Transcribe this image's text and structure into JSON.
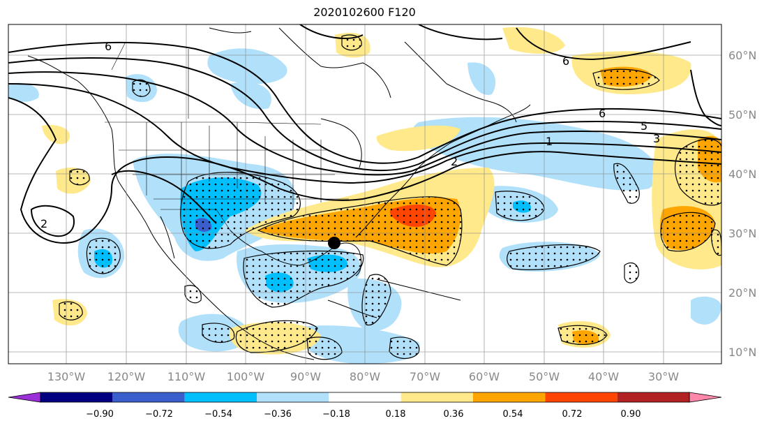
{
  "title": "2020102600 F120",
  "longitude_labels": [
    "130°W",
    "120°W",
    "110°W",
    "100°W",
    "90°W",
    "80°W",
    "70°W",
    "60°W",
    "50°W",
    "40°W",
    "30°W"
  ],
  "latitude_labels": [
    "60°N",
    "50°N",
    "40°N",
    "30°N",
    "20°N",
    "10°N"
  ],
  "colorbar": {
    "tick_labels": [
      "−0.90",
      "−0.72",
      "−0.54",
      "−0.36",
      "−0.18",
      "0.18",
      "0.36",
      "0.54",
      "0.72",
      "0.90"
    ],
    "colors": [
      "#9b30d9",
      "#000080",
      "#3a5fcd",
      "#00bfff",
      "#b0e0fa",
      "#ffffff",
      "#ffe98a",
      "#ffa500",
      "#ff4500",
      "#b22222",
      "#ff88aa"
    ]
  },
  "contour_labels": [
    "6",
    "6",
    "6",
    "5",
    "3",
    "1",
    "2",
    "2"
  ],
  "marker": "storm-position"
}
